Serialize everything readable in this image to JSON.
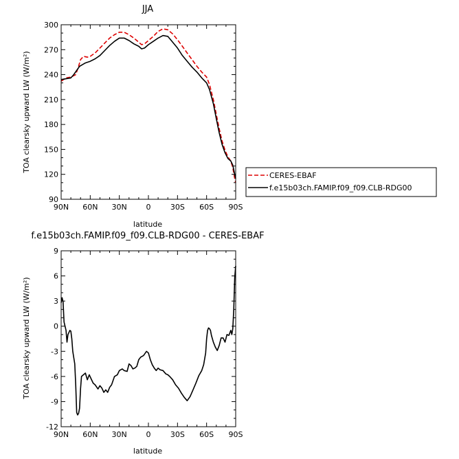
{
  "chart_data": [
    {
      "type": "line",
      "title": "JJA",
      "xlabel": "latitude",
      "ylabel": "TOA clearsky upward LW (W/m²)",
      "xlim": [
        90,
        -90
      ],
      "ylim": [
        90,
        300
      ],
      "x_ticks": [
        90,
        60,
        30,
        0,
        -30,
        -60,
        -90
      ],
      "x_tick_labels": [
        "90N",
        "60N",
        "30N",
        "0",
        "30S",
        "60S",
        "90S"
      ],
      "y_ticks": [
        90,
        120,
        150,
        180,
        210,
        240,
        270,
        300
      ],
      "y_tick_labels": [
        "90",
        "120",
        "150",
        "180",
        "210",
        "240",
        "270",
        "300"
      ],
      "legend_position": "right",
      "series": [
        {
          "name": "CERES-EBAF",
          "color": "#dd0000",
          "dash": "dashed",
          "points": [
            [
              90,
              232
            ],
            [
              85,
              236
            ],
            [
              80,
              237
            ],
            [
              75,
              240
            ],
            [
              72,
              250
            ],
            [
              70,
              258
            ],
            [
              67,
              262
            ],
            [
              63,
              261
            ],
            [
              60,
              262
            ],
            [
              55,
              266
            ],
            [
              50,
              272
            ],
            [
              45,
              278
            ],
            [
              40,
              284
            ],
            [
              35,
              288
            ],
            [
              30,
              291
            ],
            [
              25,
              291
            ],
            [
              20,
              288
            ],
            [
              15,
              284
            ],
            [
              10,
              279
            ],
            [
              7,
              276
            ],
            [
              4,
              277
            ],
            [
              0,
              281
            ],
            [
              -5,
              286
            ],
            [
              -10,
              292
            ],
            [
              -15,
              295
            ],
            [
              -20,
              294
            ],
            [
              -25,
              289
            ],
            [
              -30,
              282
            ],
            [
              -35,
              274
            ],
            [
              -40,
              266
            ],
            [
              -45,
              258
            ],
            [
              -50,
              250
            ],
            [
              -55,
              243
            ],
            [
              -60,
              237
            ],
            [
              -63,
              228
            ],
            [
              -67,
              210
            ],
            [
              -70,
              192
            ],
            [
              -73,
              175
            ],
            [
              -76,
              160
            ],
            [
              -79,
              149
            ],
            [
              -82,
              141
            ],
            [
              -85,
              136
            ],
            [
              -87,
              128
            ],
            [
              -89,
              115
            ],
            [
              -90,
              110
            ]
          ]
        },
        {
          "name": "f.e15b03ch.FAMIP.f09_f09.CLB-RDG00",
          "color": "#000000",
          "dash": "solid",
          "points": [
            [
              90,
              234
            ],
            [
              85,
              235
            ],
            [
              80,
              236
            ],
            [
              77,
              240
            ],
            [
              74,
              245
            ],
            [
              71,
              250
            ],
            [
              68,
              252
            ],
            [
              65,
              254
            ],
            [
              60,
              256
            ],
            [
              55,
              259
            ],
            [
              50,
              263
            ],
            [
              45,
              269
            ],
            [
              40,
              275
            ],
            [
              35,
              280
            ],
            [
              30,
              284
            ],
            [
              25,
              284
            ],
            [
              20,
              281
            ],
            [
              15,
              277
            ],
            [
              10,
              274
            ],
            [
              7,
              271
            ],
            [
              4,
              272
            ],
            [
              0,
              276
            ],
            [
              -5,
              280
            ],
            [
              -10,
              284
            ],
            [
              -15,
              287
            ],
            [
              -20,
              286
            ],
            [
              -25,
              279
            ],
            [
              -30,
              272
            ],
            [
              -35,
              263
            ],
            [
              -40,
              256
            ],
            [
              -45,
              249
            ],
            [
              -50,
              243
            ],
            [
              -55,
              236
            ],
            [
              -60,
              230
            ],
            [
              -63,
              222
            ],
            [
              -67,
              205
            ],
            [
              -70,
              187
            ],
            [
              -73,
              170
            ],
            [
              -76,
              156
            ],
            [
              -79,
              146
            ],
            [
              -82,
              139
            ],
            [
              -85,
              136
            ],
            [
              -87,
              131
            ],
            [
              -89,
              120
            ],
            [
              -90,
              115
            ]
          ]
        }
      ]
    },
    {
      "type": "line",
      "title": "f.e15b03ch.FAMIP.f09_f09.CLB-RDG00 - CERES-EBAF",
      "xlabel": "latitude",
      "ylabel": "TOA clearsky upward LW (W/m²)",
      "xlim": [
        90,
        -90
      ],
      "ylim": [
        -12,
        9
      ],
      "x_ticks": [
        90,
        60,
        30,
        0,
        -30,
        -60,
        -90
      ],
      "x_tick_labels": [
        "90N",
        "60N",
        "30N",
        "0",
        "30S",
        "60S",
        "90S"
      ],
      "y_ticks": [
        -12,
        -9,
        -6,
        -3,
        0,
        3,
        6,
        9
      ],
      "y_tick_labels": [
        "-12",
        "-9",
        "-6",
        "-3",
        "0",
        "3",
        "6",
        "9"
      ],
      "series": [
        {
          "name": "",
          "color": "#000000",
          "dash": "solid",
          "points": [
            [
              90,
              2.8
            ],
            [
              89,
              3.4
            ],
            [
              88,
              2.9
            ],
            [
              87,
              0.5
            ],
            [
              85,
              -0.5
            ],
            [
              84,
              -1.9
            ],
            [
              83,
              -1.0
            ],
            [
              81,
              -0.5
            ],
            [
              80,
              -0.6
            ],
            [
              79,
              -1.5
            ],
            [
              78,
              -3.0
            ],
            [
              76,
              -4.5
            ],
            [
              75,
              -7.0
            ],
            [
              74,
              -10.3
            ],
            [
              73,
              -10.6
            ],
            [
              72,
              -10.4
            ],
            [
              71,
              -9.8
            ],
            [
              70,
              -7.5
            ],
            [
              69,
              -6.0
            ],
            [
              67,
              -5.8
            ],
            [
              65,
              -5.6
            ],
            [
              63,
              -6.4
            ],
            [
              61,
              -5.8
            ],
            [
              59,
              -6.3
            ],
            [
              57,
              -6.8
            ],
            [
              55,
              -7.0
            ],
            [
              52,
              -7.5
            ],
            [
              50,
              -7.1
            ],
            [
              48,
              -7.4
            ],
            [
              46,
              -7.9
            ],
            [
              44,
              -7.6
            ],
            [
              42,
              -7.9
            ],
            [
              40,
              -7.3
            ],
            [
              38,
              -7.0
            ],
            [
              35,
              -6.0
            ],
            [
              32,
              -5.8
            ],
            [
              30,
              -5.3
            ],
            [
              27,
              -5.1
            ],
            [
              25,
              -5.3
            ],
            [
              22,
              -5.4
            ],
            [
              20,
              -4.5
            ],
            [
              18,
              -4.7
            ],
            [
              16,
              -5.1
            ],
            [
              14,
              -5.0
            ],
            [
              12,
              -4.8
            ],
            [
              10,
              -4.0
            ],
            [
              8,
              -3.7
            ],
            [
              5,
              -3.5
            ],
            [
              2,
              -3.0
            ],
            [
              0,
              -3.2
            ],
            [
              -2,
              -4.0
            ],
            [
              -4,
              -4.6
            ],
            [
              -6,
              -5.0
            ],
            [
              -8,
              -5.3
            ],
            [
              -10,
              -5.0
            ],
            [
              -12,
              -5.2
            ],
            [
              -15,
              -5.3
            ],
            [
              -18,
              -5.7
            ],
            [
              -20,
              -5.8
            ],
            [
              -22,
              -6.0
            ],
            [
              -25,
              -6.4
            ],
            [
              -28,
              -7.0
            ],
            [
              -31,
              -7.4
            ],
            [
              -34,
              -8.0
            ],
            [
              -37,
              -8.5
            ],
            [
              -40,
              -8.9
            ],
            [
              -43,
              -8.4
            ],
            [
              -46,
              -7.6
            ],
            [
              -49,
              -6.8
            ],
            [
              -52,
              -5.9
            ],
            [
              -55,
              -5.3
            ],
            [
              -57,
              -4.6
            ],
            [
              -59,
              -3.2
            ],
            [
              -60,
              -1.5
            ],
            [
              -61,
              -0.5
            ],
            [
              -62,
              -0.2
            ],
            [
              -63,
              -0.3
            ],
            [
              -64,
              -0.5
            ],
            [
              -65,
              -1.1
            ],
            [
              -67,
              -1.9
            ],
            [
              -69,
              -2.5
            ],
            [
              -71,
              -2.9
            ],
            [
              -73,
              -2.3
            ],
            [
              -75,
              -1.4
            ],
            [
              -77,
              -1.4
            ],
            [
              -79,
              -1.9
            ],
            [
              -81,
              -1.0
            ],
            [
              -83,
              -1.1
            ],
            [
              -85,
              -0.5
            ],
            [
              -86,
              -1.0
            ],
            [
              -87,
              -0.3
            ],
            [
              -88,
              2.0
            ],
            [
              -89,
              5.8
            ],
            [
              -90,
              7.2
            ]
          ]
        }
      ]
    }
  ]
}
